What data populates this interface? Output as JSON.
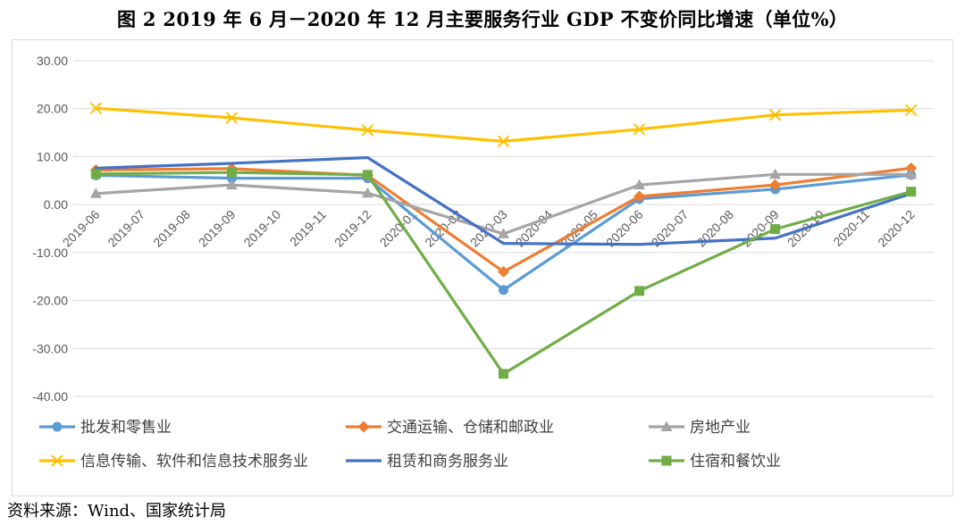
{
  "title": "图 2   2019 年 6 月－2020 年 12 月主要服务行业 GDP 不变价同比增速（单位%）",
  "source": "资料来源：Wind、国家统计局",
  "chart_data": {
    "type": "line",
    "x": [
      "2019-06",
      "2019-07",
      "2019-08",
      "2019-09",
      "2019-10",
      "2019-11",
      "2019-12",
      "2020-01",
      "2020-02",
      "2020-03",
      "2020-04",
      "2020-05",
      "2020-06",
      "2020-07",
      "2020-08",
      "2020-09",
      "2020-10",
      "2020-11",
      "2020-12"
    ],
    "ylim": [
      -40,
      30
    ],
    "yticks": [
      "30.00",
      "20.00",
      "10.00",
      "0.00",
      "-10.00",
      "-20.00",
      "-30.00",
      "-40.00"
    ],
    "grid": true,
    "legend_position": "bottom",
    "series": [
      {
        "name": "批发和零售业",
        "color": "#5B9BD5",
        "marker": "circle",
        "values": [
          6.1,
          null,
          null,
          5.5,
          null,
          null,
          5.5,
          null,
          null,
          -17.8,
          null,
          null,
          1.2,
          null,
          null,
          3.2,
          null,
          null,
          6.2
        ]
      },
      {
        "name": "交通运输、仓储和邮政业",
        "color": "#ED7D31",
        "marker": "diamond",
        "values": [
          7.2,
          null,
          null,
          7.5,
          null,
          null,
          6.1,
          null,
          null,
          -14.0,
          null,
          null,
          1.7,
          null,
          null,
          4.1,
          null,
          null,
          7.6
        ]
      },
      {
        "name": "房地产业",
        "color": "#A5A5A5",
        "marker": "triangle",
        "values": [
          2.3,
          null,
          null,
          4.1,
          null,
          null,
          2.4,
          null,
          null,
          -6.1,
          null,
          null,
          4.1,
          null,
          null,
          6.3,
          null,
          null,
          6.3
        ]
      },
      {
        "name": "信息传输、软件和信息技术服务业",
        "color": "#FFC000",
        "marker": "x",
        "values": [
          20.1,
          null,
          null,
          18.1,
          null,
          null,
          15.5,
          null,
          null,
          13.2,
          null,
          null,
          15.7,
          null,
          null,
          18.7,
          null,
          null,
          19.7
        ]
      },
      {
        "name": "租赁和商务服务业",
        "color": "#4472C4",
        "marker": "none",
        "values": [
          7.6,
          null,
          null,
          8.6,
          null,
          null,
          9.8,
          null,
          null,
          -8.1,
          null,
          null,
          -8.3,
          null,
          null,
          -7.0,
          null,
          null,
          2.3
        ]
      },
      {
        "name": "住宿和餐饮业",
        "color": "#70AD47",
        "marker": "square",
        "values": [
          6.4,
          null,
          null,
          6.7,
          null,
          null,
          6.2,
          null,
          null,
          -35.3,
          null,
          null,
          -18.0,
          null,
          null,
          -5.1,
          null,
          null,
          2.7
        ]
      }
    ]
  }
}
